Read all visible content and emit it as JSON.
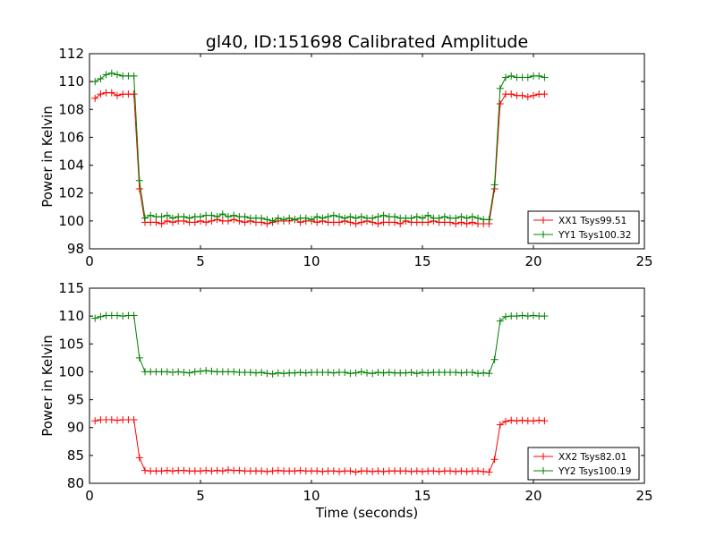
{
  "chart_data": [
    {
      "type": "line",
      "title": "gl40, ID:151698 Calibrated Amplitude",
      "xlabel": "",
      "ylabel": "Power in Kelvin",
      "xlim": [
        0,
        25
      ],
      "ylim": [
        98,
        112
      ],
      "xticks": [
        0,
        5,
        10,
        15,
        20,
        25
      ],
      "yticks": [
        98,
        100,
        102,
        104,
        106,
        108,
        110,
        112
      ],
      "legend_position": "lower-right",
      "series": [
        {
          "name": "XX1 Tsys99.51",
          "color": "#ff0000",
          "x": [
            0.25,
            0.5,
            0.75,
            1.0,
            1.25,
            1.5,
            1.75,
            2.0,
            2.25,
            2.5,
            2.75,
            3.0,
            3.25,
            3.5,
            3.75,
            4.0,
            4.25,
            4.5,
            4.75,
            5.0,
            5.25,
            5.5,
            5.75,
            6.0,
            6.25,
            6.5,
            6.75,
            7.0,
            7.25,
            7.5,
            7.75,
            8.0,
            8.25,
            8.5,
            8.75,
            9.0,
            9.25,
            9.5,
            9.75,
            10.0,
            10.25,
            10.5,
            10.75,
            11.0,
            11.25,
            11.5,
            11.75,
            12.0,
            12.25,
            12.5,
            12.75,
            13.0,
            13.25,
            13.5,
            13.75,
            14.0,
            14.25,
            14.5,
            14.75,
            15.0,
            15.25,
            15.5,
            15.75,
            16.0,
            16.25,
            16.5,
            16.75,
            17.0,
            17.25,
            17.5,
            17.75,
            18.0,
            18.25,
            18.5,
            18.75,
            19.0,
            19.25,
            19.5,
            19.75,
            20.0,
            20.25,
            20.5
          ],
          "y": [
            108.8,
            109.1,
            109.2,
            109.2,
            109.0,
            109.1,
            109.1,
            109.1,
            102.3,
            99.9,
            99.9,
            99.9,
            99.8,
            100.0,
            99.9,
            100.0,
            100.0,
            99.9,
            99.9,
            100.0,
            99.9,
            100.0,
            100.1,
            100.0,
            100.0,
            100.1,
            100.0,
            99.9,
            100.0,
            99.9,
            99.9,
            99.8,
            99.9,
            100.0,
            100.0,
            100.0,
            100.1,
            99.9,
            100.0,
            100.0,
            99.9,
            100.0,
            99.9,
            99.9,
            99.9,
            100.0,
            99.9,
            99.8,
            99.9,
            100.0,
            99.9,
            99.8,
            99.9,
            99.9,
            99.9,
            99.8,
            100.0,
            99.9,
            99.9,
            99.9,
            99.9,
            100.0,
            99.9,
            99.9,
            99.9,
            99.8,
            99.9,
            99.8,
            99.9,
            99.8,
            99.8,
            99.8,
            102.3,
            108.4,
            109.1,
            109.1,
            109.0,
            109.0,
            108.9,
            109.0,
            109.1,
            109.1
          ]
        },
        {
          "name": "YY1 Tsys100.32",
          "color": "#008000",
          "x": [
            0.25,
            0.5,
            0.75,
            1.0,
            1.25,
            1.5,
            1.75,
            2.0,
            2.25,
            2.5,
            2.75,
            3.0,
            3.25,
            3.5,
            3.75,
            4.0,
            4.25,
            4.5,
            4.75,
            5.0,
            5.25,
            5.5,
            5.75,
            6.0,
            6.25,
            6.5,
            6.75,
            7.0,
            7.25,
            7.5,
            7.75,
            8.0,
            8.25,
            8.5,
            8.75,
            9.0,
            9.25,
            9.5,
            9.75,
            10.0,
            10.25,
            10.5,
            10.75,
            11.0,
            11.25,
            11.5,
            11.75,
            12.0,
            12.25,
            12.5,
            12.75,
            13.0,
            13.25,
            13.5,
            13.75,
            14.0,
            14.25,
            14.5,
            14.75,
            15.0,
            15.25,
            15.5,
            15.75,
            16.0,
            16.25,
            16.5,
            16.75,
            17.0,
            17.25,
            17.5,
            17.75,
            18.0,
            18.25,
            18.5,
            18.75,
            19.0,
            19.25,
            19.5,
            19.75,
            20.0,
            20.25,
            20.5
          ],
          "y": [
            110.0,
            110.2,
            110.5,
            110.6,
            110.5,
            110.4,
            110.4,
            110.4,
            102.9,
            100.2,
            100.4,
            100.3,
            100.3,
            100.4,
            100.2,
            100.3,
            100.3,
            100.2,
            100.3,
            100.3,
            100.4,
            100.4,
            100.3,
            100.5,
            100.3,
            100.4,
            100.3,
            100.3,
            100.2,
            100.2,
            100.2,
            100.1,
            100.0,
            100.2,
            100.1,
            100.2,
            100.1,
            100.2,
            100.2,
            100.1,
            100.3,
            100.2,
            100.3,
            100.4,
            100.3,
            100.2,
            100.3,
            100.2,
            100.3,
            100.2,
            100.2,
            100.3,
            100.4,
            100.3,
            100.3,
            100.2,
            100.2,
            100.2,
            100.3,
            100.2,
            100.4,
            100.2,
            100.2,
            100.3,
            100.2,
            100.2,
            100.3,
            100.2,
            100.3,
            100.2,
            100.1,
            100.1,
            102.6,
            109.5,
            110.3,
            110.4,
            110.3,
            110.3,
            110.3,
            110.4,
            110.4,
            110.3
          ]
        }
      ]
    },
    {
      "type": "line",
      "title": "",
      "xlabel": "Time (seconds)",
      "ylabel": "Power in Kelvin",
      "xlim": [
        0,
        25
      ],
      "ylim": [
        80,
        115
      ],
      "xticks": [
        0,
        5,
        10,
        15,
        20,
        25
      ],
      "yticks": [
        80,
        85,
        90,
        95,
        100,
        105,
        110,
        115
      ],
      "legend_position": "lower-right",
      "series": [
        {
          "name": "XX2 Tsys82.01",
          "color": "#ff0000",
          "x": [
            0.25,
            0.5,
            0.75,
            1.0,
            1.25,
            1.5,
            1.75,
            2.0,
            2.25,
            2.5,
            2.75,
            3.0,
            3.25,
            3.5,
            3.75,
            4.0,
            4.25,
            4.5,
            4.75,
            5.0,
            5.25,
            5.5,
            5.75,
            6.0,
            6.25,
            6.5,
            6.75,
            7.0,
            7.25,
            7.5,
            7.75,
            8.0,
            8.25,
            8.5,
            8.75,
            9.0,
            9.25,
            9.5,
            9.75,
            10.0,
            10.25,
            10.5,
            10.75,
            11.0,
            11.25,
            11.5,
            11.75,
            12.0,
            12.25,
            12.5,
            12.75,
            13.0,
            13.25,
            13.5,
            13.75,
            14.0,
            14.25,
            14.5,
            14.75,
            15.0,
            15.25,
            15.5,
            15.75,
            16.0,
            16.25,
            16.5,
            16.75,
            17.0,
            17.25,
            17.5,
            17.75,
            18.0,
            18.25,
            18.5,
            18.75,
            19.0,
            19.25,
            19.5,
            19.75,
            20.0,
            20.25,
            20.5
          ],
          "y": [
            91.2,
            91.4,
            91.4,
            91.4,
            91.3,
            91.4,
            91.4,
            91.4,
            84.6,
            82.3,
            82.2,
            82.2,
            82.2,
            82.3,
            82.2,
            82.3,
            82.3,
            82.2,
            82.2,
            82.2,
            82.3,
            82.2,
            82.3,
            82.2,
            82.4,
            82.3,
            82.3,
            82.2,
            82.2,
            82.2,
            82.2,
            82.1,
            82.2,
            82.3,
            82.2,
            82.2,
            82.2,
            82.3,
            82.2,
            82.2,
            82.2,
            82.1,
            82.2,
            82.2,
            82.1,
            82.2,
            82.2,
            82.0,
            82.2,
            82.2,
            82.1,
            82.2,
            82.1,
            82.2,
            82.2,
            82.2,
            82.2,
            82.1,
            82.2,
            82.1,
            82.2,
            82.2,
            82.1,
            82.2,
            82.2,
            82.1,
            82.2,
            82.1,
            82.2,
            82.2,
            82.1,
            82.0,
            84.3,
            90.5,
            91.1,
            91.3,
            91.2,
            91.3,
            91.2,
            91.2,
            91.3,
            91.2
          ]
        },
        {
          "name": "YY2 Tsys100.19",
          "color": "#008000",
          "x": [
            0.25,
            0.5,
            0.75,
            1.0,
            1.25,
            1.5,
            1.75,
            2.0,
            2.25,
            2.5,
            2.75,
            3.0,
            3.25,
            3.5,
            3.75,
            4.0,
            4.25,
            4.5,
            4.75,
            5.0,
            5.25,
            5.5,
            5.75,
            6.0,
            6.25,
            6.5,
            6.75,
            7.0,
            7.25,
            7.5,
            7.75,
            8.0,
            8.25,
            8.5,
            8.75,
            9.0,
            9.25,
            9.5,
            9.75,
            10.0,
            10.25,
            10.5,
            10.75,
            11.0,
            11.25,
            11.5,
            11.75,
            12.0,
            12.25,
            12.5,
            12.75,
            13.0,
            13.25,
            13.5,
            13.75,
            14.0,
            14.25,
            14.5,
            14.75,
            15.0,
            15.25,
            15.5,
            15.75,
            16.0,
            16.25,
            16.5,
            16.75,
            17.0,
            17.25,
            17.5,
            17.75,
            18.0,
            18.25,
            18.5,
            18.75,
            19.0,
            19.25,
            19.5,
            19.75,
            20.0,
            20.25,
            20.5
          ],
          "y": [
            109.6,
            109.9,
            110.1,
            110.1,
            110.1,
            110.0,
            110.1,
            110.1,
            102.5,
            100.0,
            100.0,
            100.0,
            100.0,
            100.0,
            99.9,
            100.0,
            99.9,
            99.8,
            100.0,
            100.1,
            100.2,
            100.1,
            100.0,
            100.0,
            100.0,
            100.0,
            99.9,
            99.9,
            99.9,
            99.8,
            99.9,
            99.7,
            99.6,
            99.8,
            99.7,
            99.8,
            99.8,
            99.9,
            99.8,
            99.9,
            99.9,
            99.9,
            99.9,
            99.8,
            99.9,
            99.9,
            99.7,
            99.8,
            100.0,
            99.8,
            99.7,
            99.9,
            99.8,
            99.9,
            99.8,
            99.8,
            99.8,
            99.9,
            99.7,
            99.9,
            99.8,
            99.9,
            99.9,
            99.9,
            99.9,
            99.9,
            99.8,
            99.9,
            99.9,
            99.7,
            99.8,
            99.7,
            102.2,
            109.1,
            109.9,
            110.0,
            110.0,
            110.1,
            110.0,
            110.1,
            110.0,
            110.0
          ]
        }
      ]
    }
  ]
}
